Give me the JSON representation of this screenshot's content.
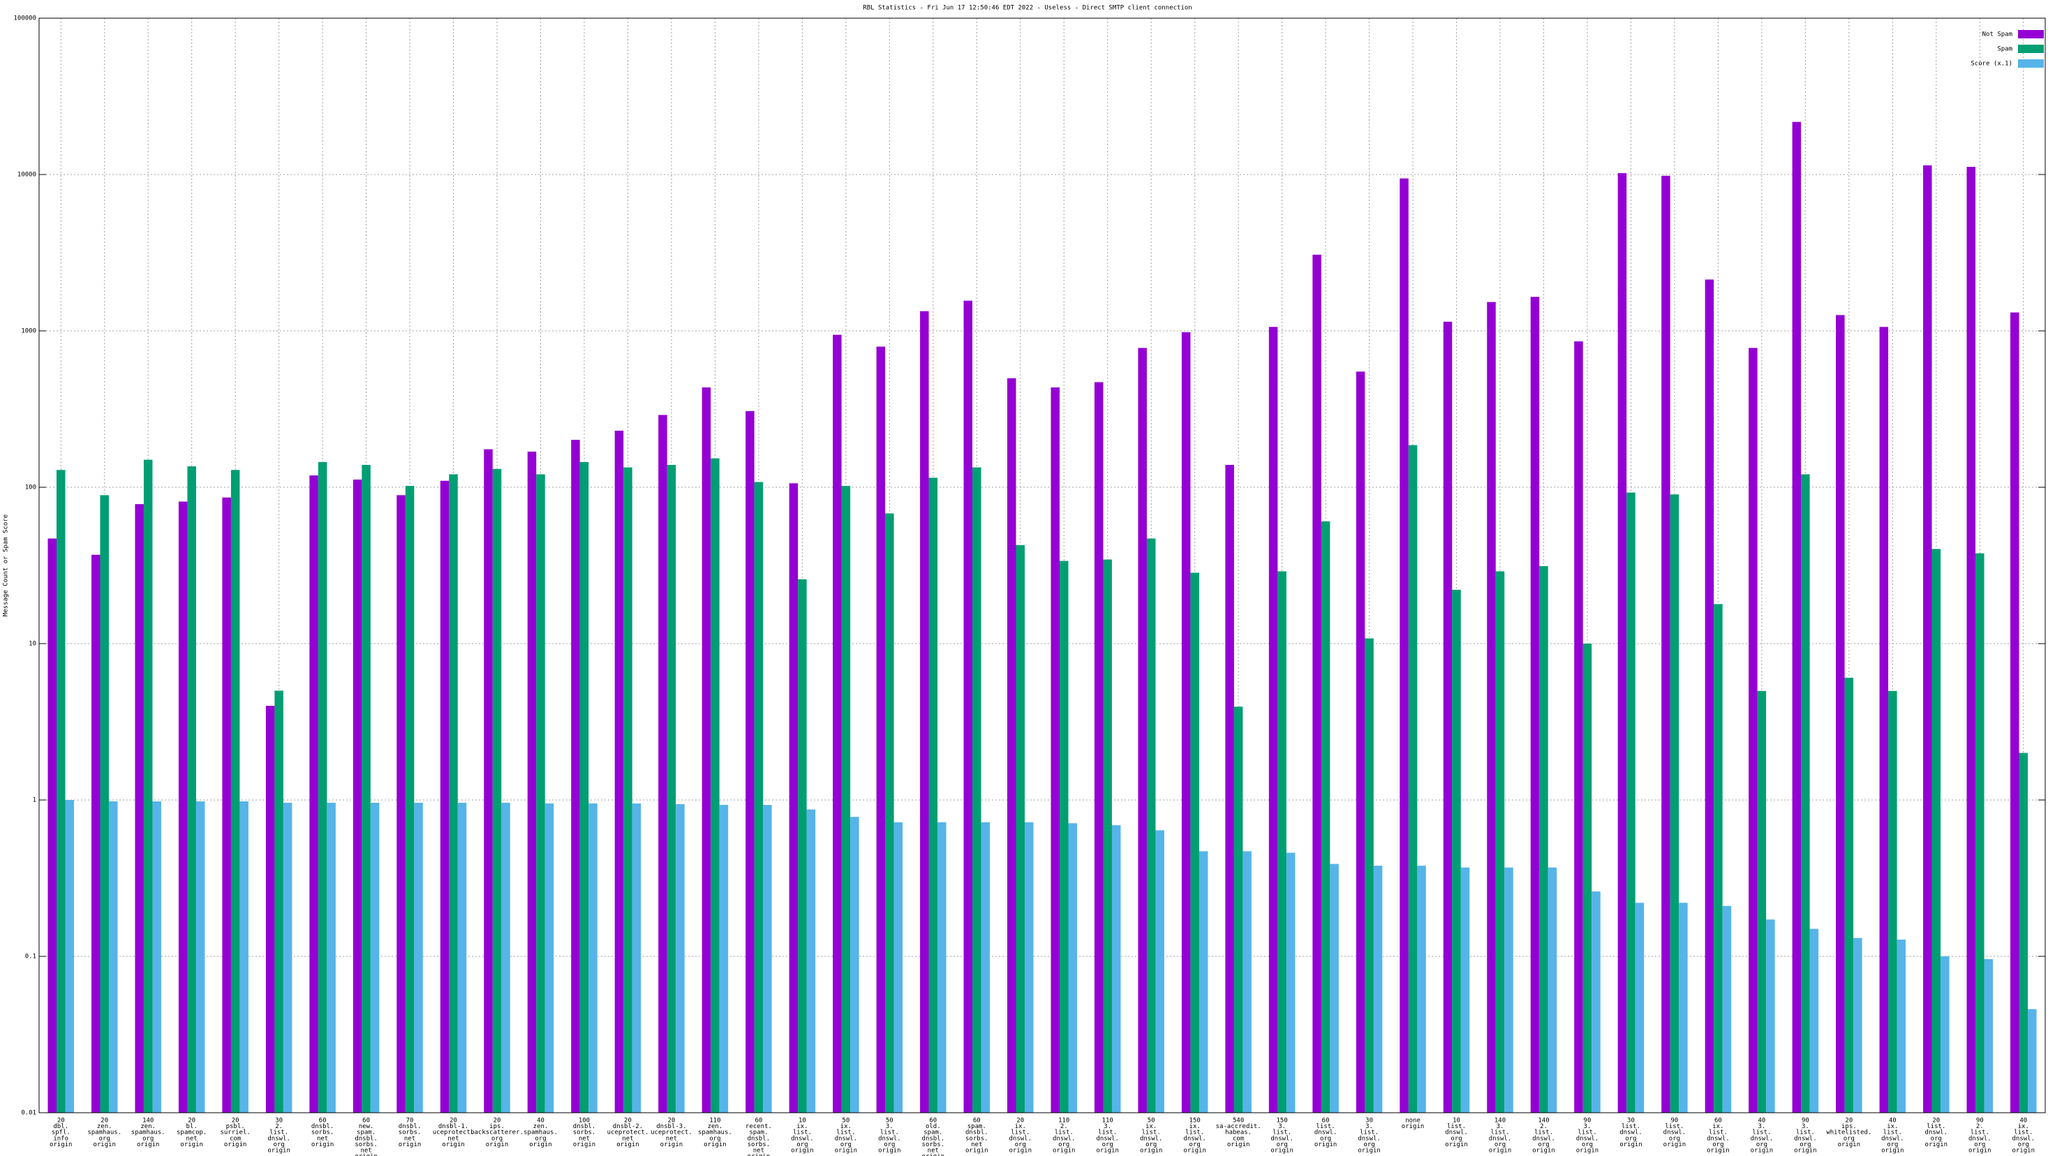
{
  "chart_data": {
    "type": "bar",
    "log_scale": true,
    "grid": true,
    "legend": "top-right",
    "title": "RBL Statistics - Fri Jun 17 12:50:46 EDT 2022 - Useless - Direct SMTP client connection",
    "y_label": "Message Count or Spam Score",
    "ylim": [
      0.01,
      100000
    ],
    "yticks": [
      0.01,
      0.1,
      1,
      10,
      100,
      1000,
      10000,
      100000
    ],
    "categories": [
      [
        "20",
        "dbl.",
        "spfl.",
        "info",
        "origin"
      ],
      [
        "20",
        "zen.",
        "spamhaus.",
        "org",
        "origin"
      ],
      [
        "140",
        "zen.",
        "spamhaus.",
        "org",
        "origin"
      ],
      [
        "20",
        "bl.",
        "spamcop.",
        "net",
        "origin"
      ],
      [
        "20",
        "psbl.",
        "surriel.",
        "com",
        "origin"
      ],
      [
        "30",
        "2.",
        "list.",
        "dnswl.",
        "org",
        "origin"
      ],
      [
        "60",
        "dnsbl.",
        "sorbs.",
        "net",
        "origin"
      ],
      [
        "60",
        "new.",
        "spam.",
        "dnsbl.",
        "sorbs.",
        "net",
        "origin"
      ],
      [
        "70",
        "dnsbl.",
        "sorbs.",
        "net",
        "origin"
      ],
      [
        "20",
        "dnsbl-1.",
        "uceprotect.",
        "net",
        "origin"
      ],
      [
        "20",
        "ips.",
        "backscatterer.",
        "org",
        "origin"
      ],
      [
        "40",
        "zen.",
        "spamhaus.",
        "org",
        "origin"
      ],
      [
        "100",
        "dnsbl.",
        "sorbs.",
        "net",
        "origin"
      ],
      [
        "20",
        "dnsbl-2.",
        "uceprotect.",
        "net",
        "origin"
      ],
      [
        "20",
        "dnsbl-3.",
        "uceprotect.",
        "net",
        "origin"
      ],
      [
        "110",
        "zen.",
        "spamhaus.",
        "org",
        "origin"
      ],
      [
        "60",
        "recent.",
        "spam.",
        "dnsbl.",
        "sorbs.",
        "net",
        "origin"
      ],
      [
        "10",
        "ix.",
        "list.",
        "dnswl.",
        "org",
        "origin"
      ],
      [
        "50",
        "ix.",
        "list.",
        "dnswl.",
        "org",
        "origin"
      ],
      [
        "50",
        "3.",
        "list.",
        "dnswl.",
        "org",
        "origin"
      ],
      [
        "60",
        "old.",
        "spam.",
        "dnsbl.",
        "sorbs.",
        "net",
        "origin"
      ],
      [
        "60",
        "spam.",
        "dnsbl.",
        "sorbs.",
        "net",
        "origin"
      ],
      [
        "20",
        "ix.",
        "list.",
        "dnswl.",
        "org",
        "origin"
      ],
      [
        "110",
        "2.",
        "list.",
        "dnswl.",
        "org",
        "origin"
      ],
      [
        "110",
        "3.",
        "list.",
        "dnswl.",
        "org",
        "origin"
      ],
      [
        "50",
        "ix.",
        "list.",
        "dnswl.",
        "org",
        "origin"
      ],
      [
        "150",
        "ix.",
        "list.",
        "dnswl.",
        "org",
        "origin"
      ],
      [
        "540",
        "sa-accredit.",
        "habeas.",
        "com",
        "origin"
      ],
      [
        "150",
        "3.",
        "list.",
        "dnswl.",
        "org",
        "origin"
      ],
      [
        "60",
        "list.",
        "dnswl.",
        "org",
        "origin"
      ],
      [
        "30",
        "3.",
        "list.",
        "dnswl.",
        "org",
        "origin"
      ],
      [
        "none",
        "origin"
      ],
      [
        "10",
        "list.",
        "dnswl.",
        "org",
        "origin"
      ],
      [
        "140",
        "3.",
        "list.",
        "dnswl.",
        "org",
        "origin"
      ],
      [
        "140",
        "2.",
        "list.",
        "dnswl.",
        "org",
        "origin"
      ],
      [
        "90",
        "3.",
        "list.",
        "dnswl.",
        "org",
        "origin"
      ],
      [
        "30",
        "list.",
        "dnswl.",
        "org",
        "origin"
      ],
      [
        "90",
        "list.",
        "dnswl.",
        "org",
        "origin"
      ],
      [
        "60",
        "ix.",
        "list.",
        "dnswl.",
        "org",
        "origin"
      ],
      [
        "40",
        "3.",
        "list.",
        "dnswl.",
        "org",
        "origin"
      ],
      [
        "90",
        "3.",
        "list.",
        "dnswl.",
        "org",
        "origin"
      ],
      [
        "20",
        "ips.",
        "whitelisted.",
        "org",
        "origin"
      ],
      [
        "40",
        "ix.",
        "list.",
        "dnswl.",
        "org",
        "origin"
      ],
      [
        "20",
        "list.",
        "dnswl.",
        "org",
        "origin"
      ],
      [
        "90",
        "2.",
        "list.",
        "dnswl.",
        "org",
        "origin"
      ],
      [
        "40",
        "ix.",
        "list.",
        "dnswl.",
        "org",
        "origin"
      ]
    ],
    "series": [
      {
        "name": "Not Spam",
        "color": "#9400d3",
        "values": [
          47,
          37,
          78,
          81,
          86,
          4,
          119,
          112,
          89,
          110,
          175,
          169,
          201,
          230,
          290,
          435,
          307,
          106,
          944,
          793,
          1337,
          1560,
          498,
          435,
          470,
          778,
          981,
          139,
          1060,
          3070,
          549,
          9440,
          1145,
          1530,
          1650,
          857,
          10200,
          9820,
          2130,
          778,
          21700,
          1262,
          1060,
          11450,
          11200,
          1312
        ]
      },
      {
        "name": "Spam",
        "color": "#009e73",
        "values": [
          129,
          89,
          150,
          136,
          129,
          5,
          145,
          139,
          102,
          121,
          131,
          121,
          145,
          134,
          139,
          153,
          108,
          25.8,
          102,
          68,
          115,
          134,
          42.7,
          33.8,
          34.5,
          47,
          28.4,
          3.95,
          29,
          60.5,
          10.8,
          186,
          22.1,
          29,
          31.3,
          10,
          92.5,
          90,
          17.9,
          4.98,
          121,
          6.05,
          4.98,
          40.3,
          37.8,
          2
        ]
      },
      {
        "name": "Score (x.1)",
        "color": "#56b4e9",
        "values": [
          1,
          0.98,
          0.98,
          0.98,
          0.98,
          0.96,
          0.96,
          0.96,
          0.96,
          0.96,
          0.96,
          0.95,
          0.95,
          0.95,
          0.94,
          0.93,
          0.93,
          0.87,
          0.78,
          0.72,
          0.72,
          0.72,
          0.72,
          0.71,
          0.69,
          0.64,
          0.47,
          0.47,
          0.46,
          0.39,
          0.38,
          0.38,
          0.37,
          0.37,
          0.37,
          0.26,
          0.22,
          0.22,
          0.21,
          0.172,
          0.15,
          0.131,
          0.128,
          0.1,
          0.096,
          0.046
        ]
      }
    ]
  }
}
